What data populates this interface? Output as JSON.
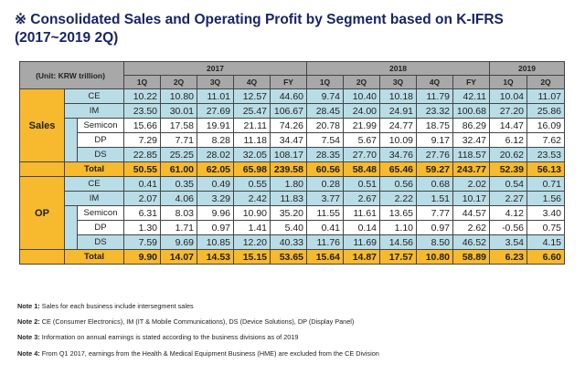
{
  "title": "※ Consolidated Sales and Operating Profit by Segment based on K-IFRS (2017~2019 2Q)",
  "table": {
    "unit_label": "(Unit: KRW trillion)",
    "years": [
      "2017",
      "2018",
      "2019"
    ],
    "quarters_2017": [
      "1Q",
      "2Q",
      "3Q",
      "4Q",
      "FY"
    ],
    "quarters_2018": [
      "1Q",
      "2Q",
      "3Q",
      "4Q",
      "FY"
    ],
    "quarters_2019": [
      "1Q",
      "2Q"
    ],
    "sections": [
      {
        "category": "Sales",
        "rows": [
          {
            "label": "CE",
            "values": [
              "10.22",
              "10.80",
              "11.01",
              "12.57",
              "44.60",
              "9.74",
              "10.40",
              "10.18",
              "11.79",
              "42.11",
              "10.04",
              "11.07"
            ]
          },
          {
            "label": "IM",
            "values": [
              "23.50",
              "30.01",
              "27.69",
              "25.47",
              "106.67",
              "28.45",
              "24.00",
              "24.91",
              "23.32",
              "100.68",
              "27.20",
              "25.86"
            ]
          },
          {
            "label": "Semicon",
            "values": [
              "15.66",
              "17.58",
              "19.91",
              "21.11",
              "74.26",
              "20.78",
              "21.99",
              "24.77",
              "18.75",
              "86.29",
              "14.47",
              "16.09"
            ]
          },
          {
            "label": "DP",
            "values": [
              "7.29",
              "7.71",
              "8.28",
              "11.18",
              "34.47",
              "7.54",
              "5.67",
              "10.09",
              "9.17",
              "32.47",
              "6.12",
              "7.62"
            ]
          },
          {
            "label": "DS",
            "values": [
              "22.85",
              "25.25",
              "28.02",
              "32.05",
              "108.17",
              "28.35",
              "27.70",
              "34.76",
              "27.76",
              "118.57",
              "20.62",
              "23.53"
            ]
          },
          {
            "label": "Total",
            "values": [
              "50.55",
              "61.00",
              "62.05",
              "65.98",
              "239.58",
              "60.56",
              "58.48",
              "65.46",
              "59.27",
              "243.77",
              "52.39",
              "56.13"
            ]
          }
        ]
      },
      {
        "category": "OP",
        "rows": [
          {
            "label": "CE",
            "values": [
              "0.41",
              "0.35",
              "0.49",
              "0.55",
              "1.80",
              "0.28",
              "0.51",
              "0.56",
              "0.68",
              "2.02",
              "0.54",
              "0.71"
            ]
          },
          {
            "label": "IM",
            "values": [
              "2.07",
              "4.06",
              "3.29",
              "2.42",
              "11.83",
              "3.77",
              "2.67",
              "2.22",
              "1.51",
              "10.17",
              "2.27",
              "1.56"
            ]
          },
          {
            "label": "Semicon",
            "values": [
              "6.31",
              "8.03",
              "9.96",
              "10.90",
              "35.20",
              "11.55",
              "11.61",
              "13.65",
              "7.77",
              "44.57",
              "4.12",
              "3.40"
            ]
          },
          {
            "label": "DP",
            "values": [
              "1.30",
              "1.71",
              "0.97",
              "1.41",
              "5.40",
              "0.41",
              "0.14",
              "1.10",
              "0.97",
              "2.62",
              "-0.56",
              "0.75"
            ]
          },
          {
            "label": "DS",
            "values": [
              "7.59",
              "9.69",
              "10.85",
              "12.20",
              "40.33",
              "11.76",
              "11.69",
              "14.56",
              "8.50",
              "46.52",
              "3.54",
              "4.15"
            ]
          },
          {
            "label": "Total",
            "values": [
              "9.90",
              "14.07",
              "14.53",
              "15.15",
              "53.65",
              "15.64",
              "14.87",
              "17.57",
              "10.80",
              "58.89",
              "6.23",
              "6.60"
            ]
          }
        ]
      }
    ]
  },
  "notes": [
    {
      "label": "Note 1:",
      "text": " Sales for each business include intersegment sales"
    },
    {
      "label": "Note 2:",
      "text": " CE (Consumer Electronics), IM (IT & Mobile Communications), DS (Device Solutions), DP (Display Panel)"
    },
    {
      "label": "Note 3:",
      "text": " Information on annual earnings is stated according to the business divisions as of 2019"
    },
    {
      "label": "Note 4:",
      "text": " From Q1 2017, earnings from the Health & Medical Equipment Business (HME) are excluded from the CE Division"
    }
  ]
}
